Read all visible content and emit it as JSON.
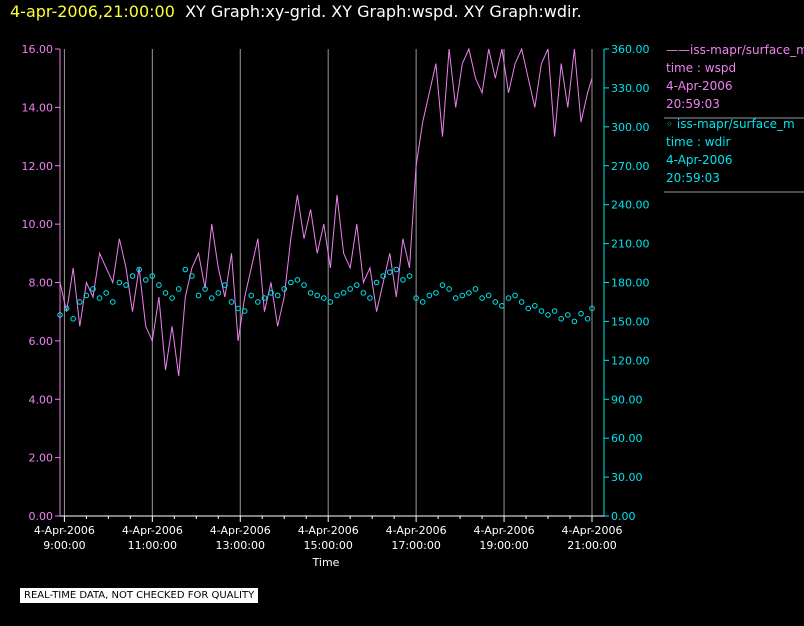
{
  "header": {
    "timestamp": "4-apr-2006,21:00:00",
    "graph_titles": "XY Graph:xy-grid.  XY Graph:wspd.  XY Graph:wdir."
  },
  "notice": "REAL-TIME DATA, NOT CHECKED FOR QUALITY",
  "colors": {
    "wspd": "#ee82ee",
    "wdir": "#00e5ee",
    "grid": "#999999",
    "axis": "#ffffff"
  },
  "legend": [
    {
      "line": "——iss-mapr/surface_m",
      "label": "time : wspd",
      "date": "4-Apr-2006",
      "time": "20:59:03"
    },
    {
      "line": "◦  iss-mapr/surface_m",
      "label": "time : wdir",
      "date": "4-Apr-2006",
      "time": "20:59:03"
    }
  ],
  "chart_data": {
    "type": "line",
    "xlabel": "Time",
    "x_range_hours": [
      8.9,
      21.0
    ],
    "x_ticks": [
      {
        "date": "4-Apr-2006",
        "time": "9:00:00",
        "hour": 9
      },
      {
        "date": "4-Apr-2006",
        "time": "11:00:00",
        "hour": 11
      },
      {
        "date": "4-Apr-2006",
        "time": "13:00:00",
        "hour": 13
      },
      {
        "date": "4-Apr-2006",
        "time": "15:00:00",
        "hour": 15
      },
      {
        "date": "4-Apr-2006",
        "time": "17:00:00",
        "hour": 17
      },
      {
        "date": "4-Apr-2006",
        "time": "19:00:00",
        "hour": 19
      },
      {
        "date": "4-Apr-2006",
        "time": "21:00:00",
        "hour": 21
      }
    ],
    "y_left": {
      "range": [
        0,
        16
      ],
      "ticks": [
        "0.00",
        "2.00",
        "4.00",
        "6.00",
        "8.00",
        "10.00",
        "12.00",
        "14.00",
        "16.00"
      ]
    },
    "y_right": {
      "range": [
        0,
        360
      ],
      "ticks": [
        "0.00",
        "30.00",
        "60.00",
        "90.00",
        "120.00",
        "150.00",
        "180.00",
        "210.00",
        "240.00",
        "270.00",
        "300.00",
        "330.00",
        "360.00"
      ]
    },
    "series": [
      {
        "name": "iss-mapr/surface_m",
        "axis": "left",
        "style": "line",
        "x": [
          8.9,
          9.05,
          9.2,
          9.35,
          9.5,
          9.65,
          9.8,
          9.95,
          10.1,
          10.25,
          10.4,
          10.55,
          10.7,
          10.85,
          11.0,
          11.15,
          11.3,
          11.45,
          11.6,
          11.75,
          11.9,
          12.05,
          12.2,
          12.35,
          12.5,
          12.65,
          12.8,
          12.95,
          13.1,
          13.25,
          13.4,
          13.55,
          13.7,
          13.85,
          14.0,
          14.15,
          14.3,
          14.45,
          14.6,
          14.75,
          14.9,
          15.05,
          15.2,
          15.35,
          15.5,
          15.65,
          15.8,
          15.95,
          16.1,
          16.25,
          16.4,
          16.55,
          16.7,
          16.85,
          17.0,
          17.15,
          17.3,
          17.45,
          17.6,
          17.75,
          17.9,
          18.05,
          18.2,
          18.35,
          18.5,
          18.65,
          18.8,
          18.95,
          19.1,
          19.25,
          19.4,
          19.55,
          19.7,
          19.85,
          20.0,
          20.15,
          20.3,
          20.45,
          20.6,
          20.75,
          20.9,
          21.0
        ],
        "values": [
          8.0,
          7.0,
          8.5,
          6.5,
          8.0,
          7.5,
          9.0,
          8.5,
          8.0,
          9.5,
          8.5,
          7.0,
          8.5,
          6.5,
          6.0,
          7.5,
          5.0,
          6.5,
          4.8,
          7.5,
          8.5,
          9.0,
          7.8,
          10.0,
          8.5,
          7.5,
          9.0,
          6.0,
          7.5,
          8.5,
          9.5,
          7.0,
          8.0,
          6.5,
          7.5,
          9.5,
          11.0,
          9.5,
          10.5,
          9.0,
          10.0,
          8.5,
          11.0,
          9.0,
          8.5,
          10.0,
          8.0,
          8.5,
          7.0,
          8.0,
          9.0,
          7.5,
          9.5,
          8.5,
          12.0,
          13.5,
          14.5,
          15.5,
          13.0,
          16.0,
          14.0,
          15.5,
          16.0,
          15.0,
          14.5,
          16.0,
          15.0,
          16.0,
          14.5,
          15.5,
          16.0,
          15.0,
          14.0,
          15.5,
          16.0,
          13.0,
          15.5,
          14.0,
          16.0,
          13.5,
          14.5,
          15.0
        ]
      },
      {
        "name": "iss-mapr/surface_m",
        "axis": "right",
        "style": "points",
        "x": [
          8.9,
          9.05,
          9.2,
          9.35,
          9.5,
          9.65,
          9.8,
          9.95,
          10.1,
          10.25,
          10.4,
          10.55,
          10.7,
          10.85,
          11.0,
          11.15,
          11.3,
          11.45,
          11.6,
          11.75,
          11.9,
          12.05,
          12.2,
          12.35,
          12.5,
          12.65,
          12.8,
          12.95,
          13.1,
          13.25,
          13.4,
          13.55,
          13.7,
          13.85,
          14.0,
          14.15,
          14.3,
          14.45,
          14.6,
          14.75,
          14.9,
          15.05,
          15.2,
          15.35,
          15.5,
          15.65,
          15.8,
          15.95,
          16.1,
          16.25,
          16.4,
          16.55,
          16.7,
          16.85,
          17.0,
          17.15,
          17.3,
          17.45,
          17.6,
          17.75,
          17.9,
          18.05,
          18.2,
          18.35,
          18.5,
          18.65,
          18.8,
          18.95,
          19.1,
          19.25,
          19.4,
          19.55,
          19.7,
          19.85,
          20.0,
          20.15,
          20.3,
          20.45,
          20.6,
          20.75,
          20.9,
          21.0
        ],
        "values": [
          155,
          160,
          152,
          165,
          170,
          175,
          168,
          172,
          165,
          180,
          178,
          185,
          190,
          182,
          185,
          178,
          172,
          168,
          175,
          190,
          185,
          170,
          175,
          168,
          172,
          178,
          165,
          160,
          158,
          170,
          165,
          168,
          172,
          170,
          175,
          180,
          182,
          178,
          172,
          170,
          168,
          165,
          170,
          172,
          175,
          178,
          172,
          168,
          180,
          185,
          188,
          190,
          182,
          185,
          168,
          165,
          170,
          172,
          178,
          175,
          168,
          170,
          172,
          175,
          168,
          170,
          165,
          162,
          168,
          170,
          165,
          160,
          162,
          158,
          155,
          158,
          152,
          155,
          150,
          156,
          152,
          160
        ]
      }
    ]
  }
}
